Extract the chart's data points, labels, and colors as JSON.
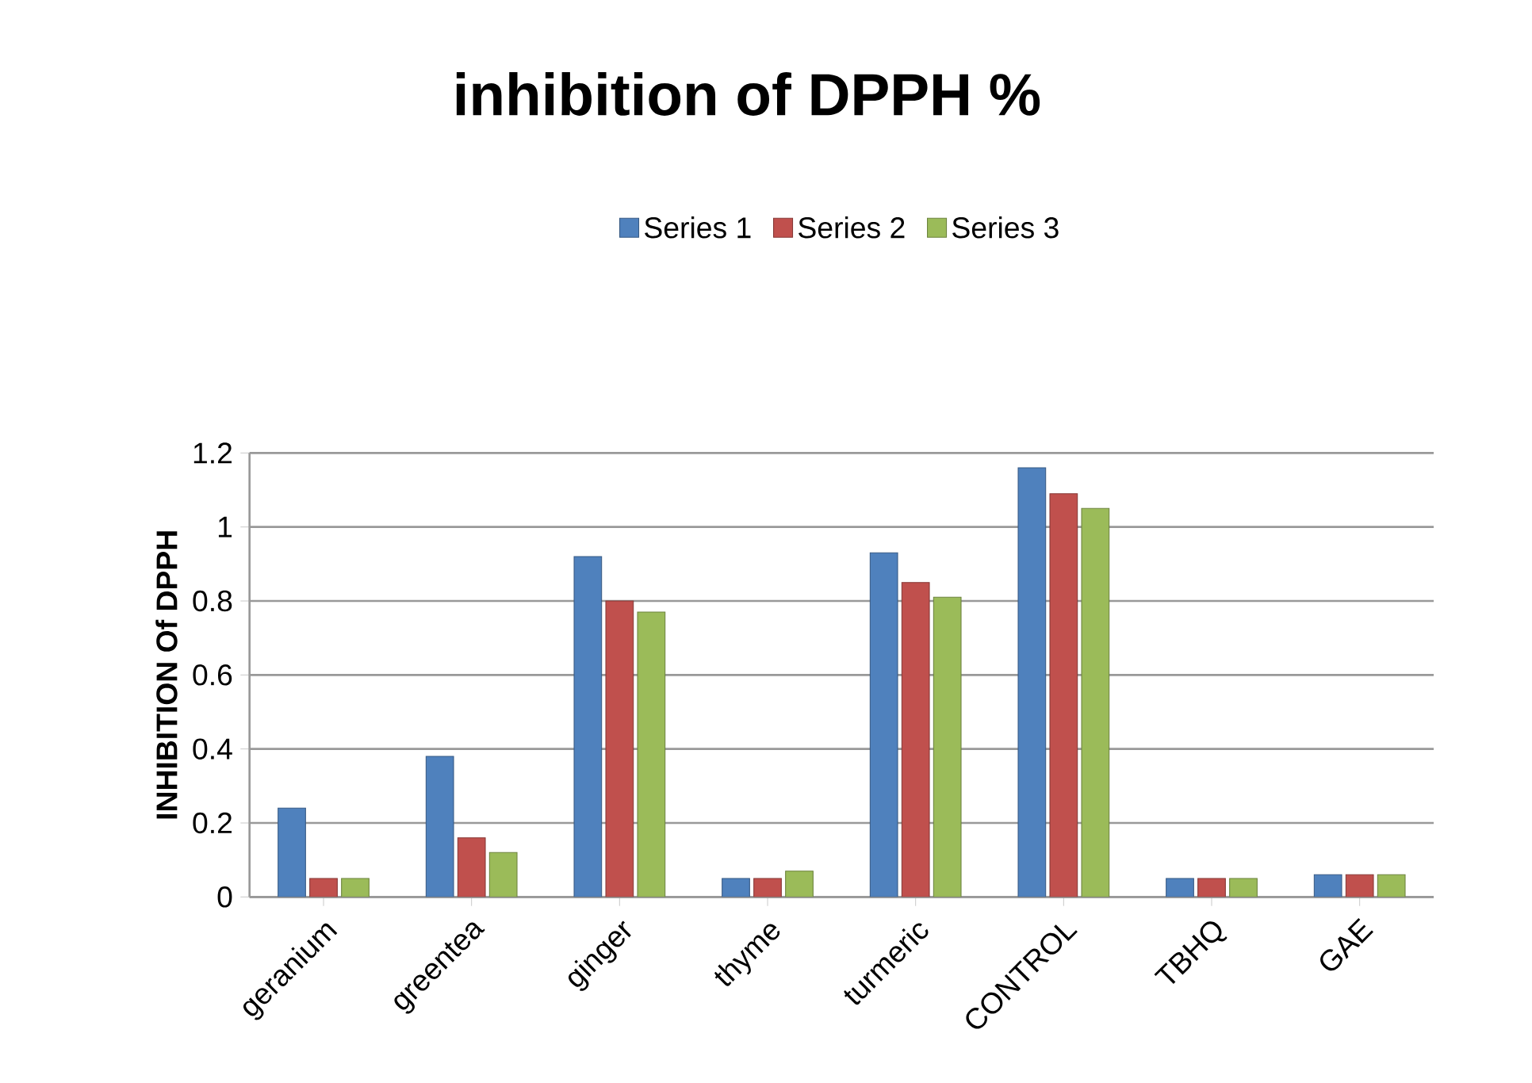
{
  "chart_data": {
    "type": "bar",
    "title": "inhibition of DPPH %",
    "ylabel": "INHIBITION Of DPPH",
    "categories": [
      "geranium",
      "greentea",
      "ginger",
      "thyme",
      "turmeric",
      "CONTROL",
      "TBHQ",
      "GAE"
    ],
    "series": [
      {
        "name": "Series 1",
        "color": "#4f81bd",
        "values": [
          0.24,
          0.38,
          0.92,
          0.05,
          0.93,
          1.16,
          0.05,
          0.06
        ]
      },
      {
        "name": "Series 2",
        "color": "#c0504d",
        "values": [
          0.05,
          0.16,
          0.8,
          0.05,
          0.85,
          1.09,
          0.05,
          0.06
        ]
      },
      {
        "name": "Series 3",
        "color": "#9bbb59",
        "values": [
          0.05,
          0.12,
          0.77,
          0.07,
          0.81,
          1.05,
          0.05,
          0.06
        ]
      }
    ],
    "ylim": [
      0,
      1.2
    ],
    "yticks": [
      0,
      0.2,
      0.4,
      0.6,
      0.8,
      1,
      1.2
    ],
    "grid": "y",
    "legend": "top"
  }
}
